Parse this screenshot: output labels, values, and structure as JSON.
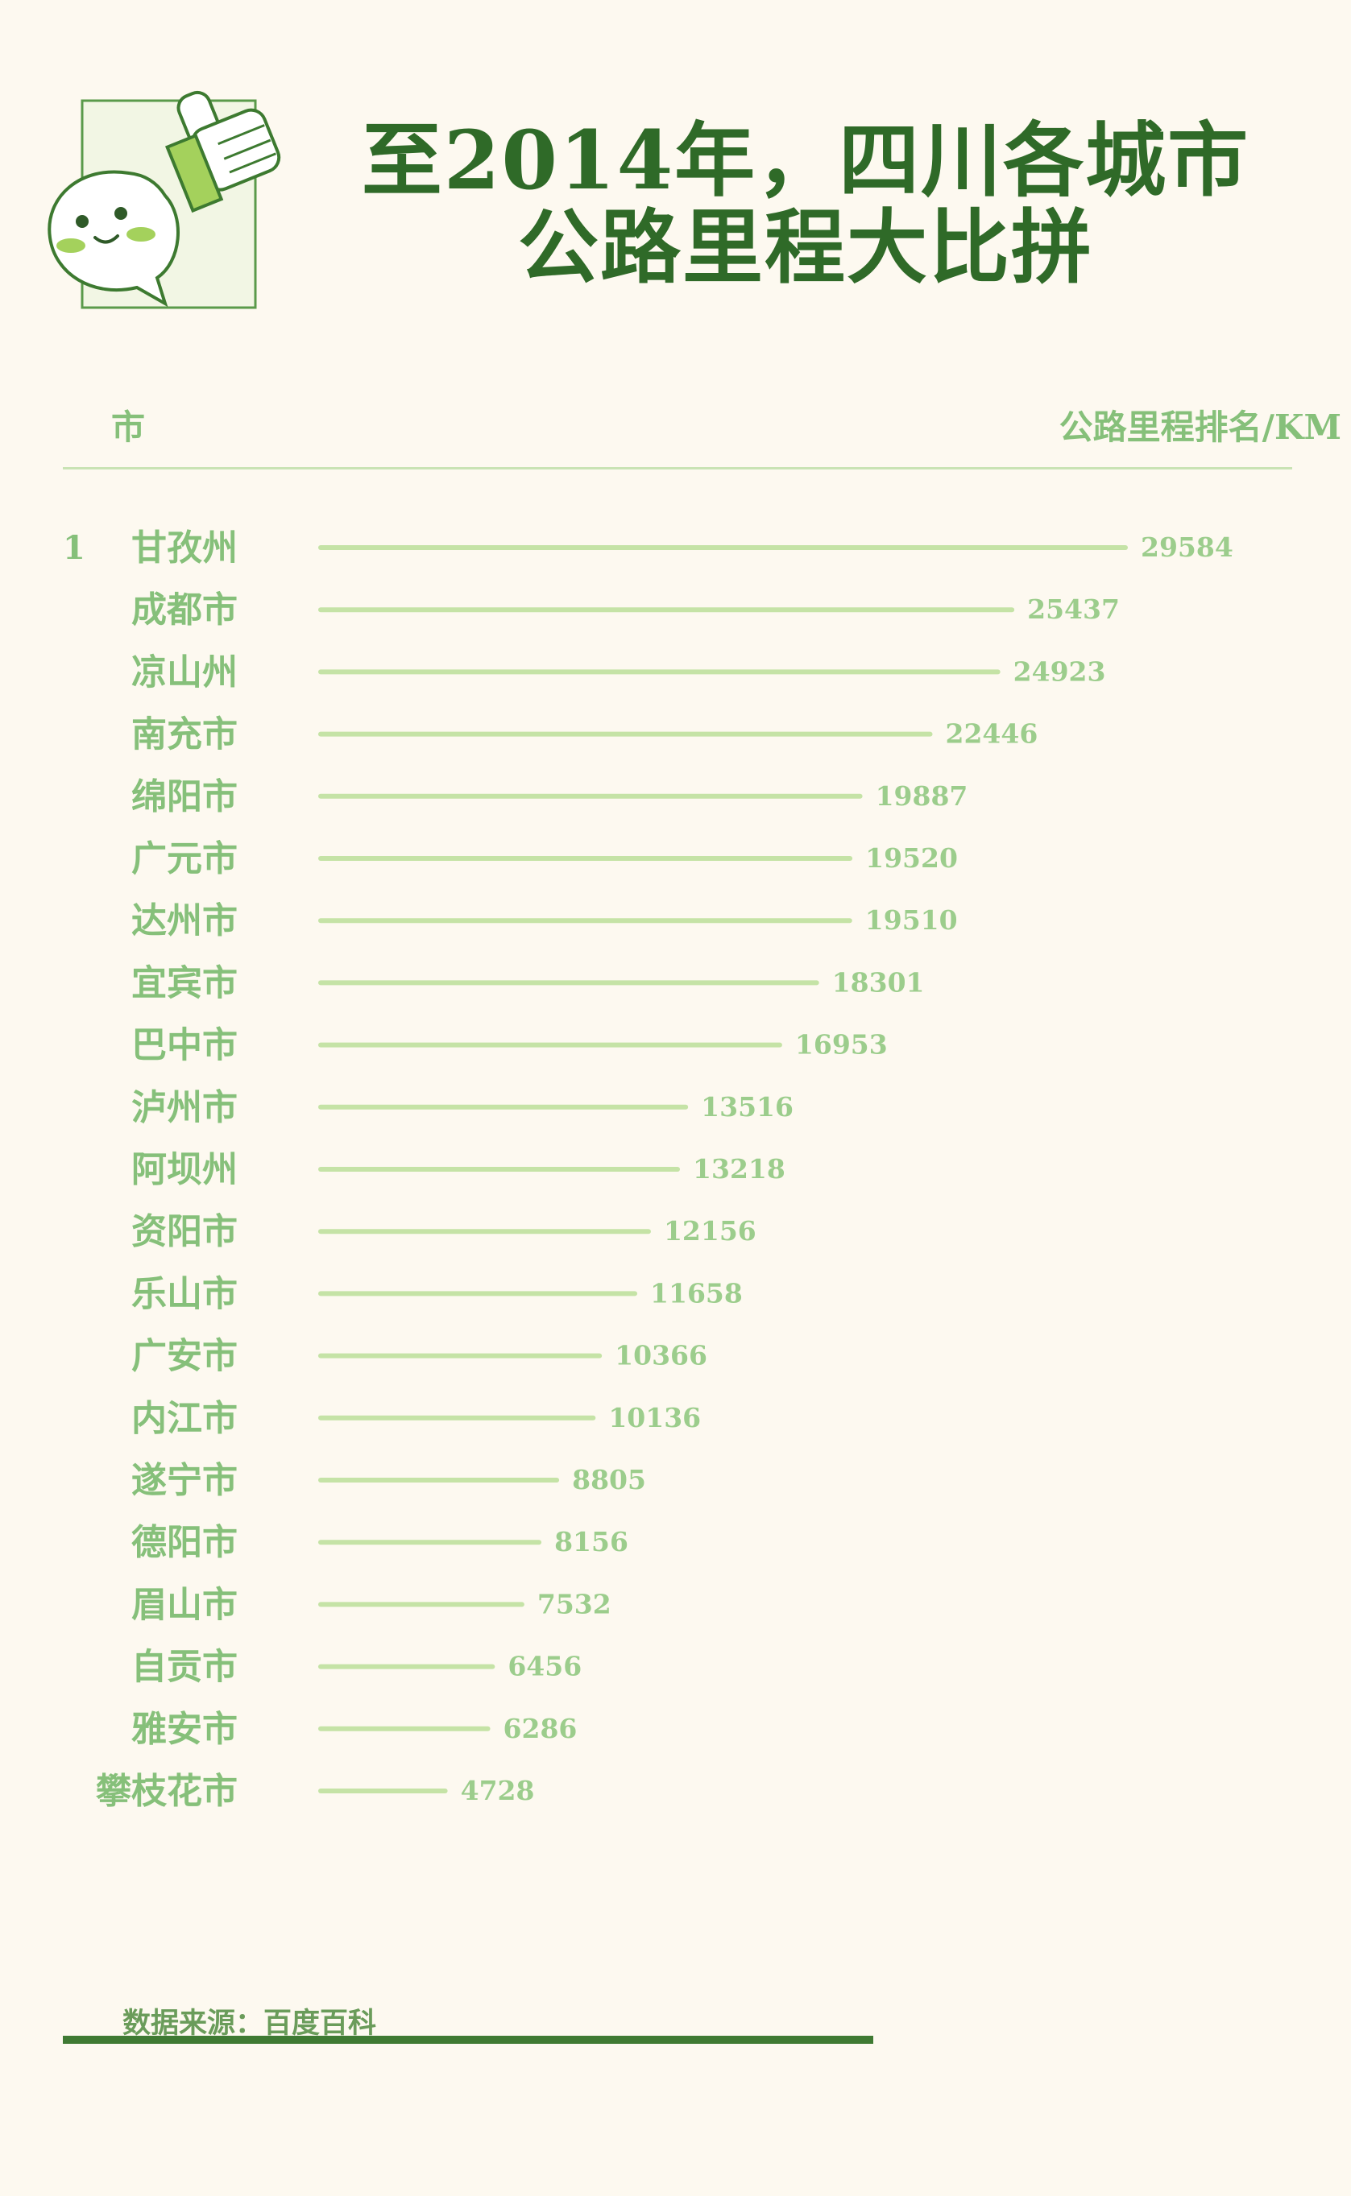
{
  "title": {
    "line1": "至2014年，四川各城市",
    "line2": "公路里程大比拼"
  },
  "header": {
    "left": "市",
    "right": "公路里程排名/KM"
  },
  "chart_data": {
    "type": "bar",
    "orientation": "horizontal",
    "title": "至2014年，四川各城市公路里程大比拼",
    "xlabel": "公路里程排名/KM",
    "ylabel": "市",
    "xlim": [
      0,
      29584
    ],
    "grid": false,
    "legend": "none",
    "rank_label": "1",
    "categories": [
      "甘孜州",
      "成都市",
      "凉山州",
      "南充市",
      "绵阳市",
      "广元市",
      "达州市",
      "宜宾市",
      "巴中市",
      "泸州市",
      "阿坝州",
      "资阳市",
      "乐山市",
      "广安市",
      "内江市",
      "遂宁市",
      "德阳市",
      "眉山市",
      "自贡市",
      "雅安市",
      "攀枝花市"
    ],
    "values": [
      29584,
      25437,
      24923,
      22446,
      19887,
      19520,
      19510,
      18301,
      16953,
      13516,
      13218,
      12156,
      11658,
      10366,
      10136,
      8805,
      8156,
      7532,
      6456,
      6286,
      4728
    ],
    "bar_color": "#c5e3a6"
  },
  "source": "数据来源：百度百科",
  "colors": {
    "background": "#fdf9f0",
    "title": "#2f6a28",
    "label": "#86c07a",
    "value": "#9ccd8c",
    "bar": "#c5e3a6",
    "footer_rule": "#3f7a33"
  },
  "icons": {
    "mascot": "thumbs-up-mascot-icon"
  }
}
